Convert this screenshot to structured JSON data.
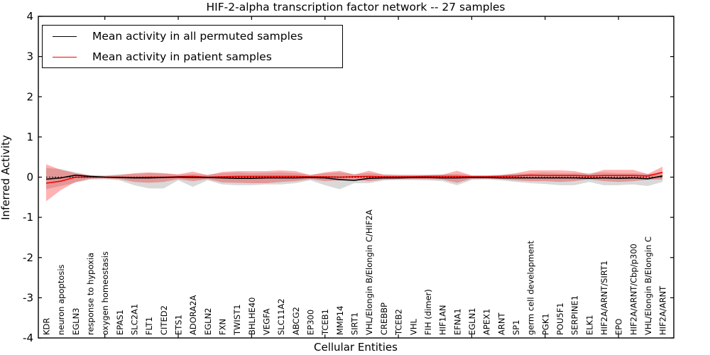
{
  "window": {
    "title": "HIF-2-alpha transcription factor network -- 27 samples"
  },
  "colors": {
    "permuted_line": "#000000",
    "patient_line": "#ff0000",
    "permuted_band": "#000000",
    "patient_band": "#ff0000",
    "axis": "#000000",
    "background": "#ffffff"
  },
  "chart_data": {
    "type": "line",
    "title": "HIF-2-alpha transcription factor network -- 27 samples",
    "xlabel": "Cellular Entities",
    "ylabel": "Inferred Activity",
    "ylim": [
      -4,
      4
    ],
    "yticks": [
      {
        "value": 4,
        "label": "4"
      },
      {
        "value": 3,
        "label": "3"
      },
      {
        "value": 2,
        "label": "2"
      },
      {
        "value": 1,
        "label": "1"
      },
      {
        "value": 0,
        "label": "0"
      },
      {
        "value": -1,
        "label": "-1"
      },
      {
        "value": -2,
        "label": "-2"
      },
      {
        "value": -3,
        "label": "-3"
      },
      {
        "value": -4,
        "label": "-4"
      }
    ],
    "x_major_tick_indices": [
      4,
      9,
      14,
      19,
      24,
      29,
      34,
      39
    ],
    "grid": false,
    "legend_position": "upper left",
    "zero_line": {
      "style": "dotted",
      "color": "#000000",
      "y": 0
    },
    "categories": [
      "KDR",
      "neuron apoptosis",
      "EGLN3",
      "response to hypoxia",
      "oxygen homeostasis",
      "EPAS1",
      "SLC2A1",
      "FLT1",
      "CITED2",
      "ETS1",
      "ADORA2A",
      "EGLN2",
      "FXN",
      "TWIST1",
      "BHLHE40",
      "VEGFA",
      "SLC11A2",
      "ABCG2",
      "EP300",
      "TCEB1",
      "MMP14",
      "SIRT1",
      "VHL/Elongin B/Elongin C/HIF2A",
      "CREBBP",
      "TCEB2",
      "VHL",
      "FIH (dimer)",
      "HIF1AN",
      "EFNA1",
      "EGLN1",
      "APEX1",
      "ARNT",
      "SP1",
      "germ cell development",
      "PGK1",
      "POU5F1",
      "SERPINE1",
      "ELK1",
      "HIF2A/ARNT/SIRT1",
      "EPO",
      "HIF2A/ARNT/Cbp/p300",
      "VHL/Elongin B/Elongin C",
      "HIF2A/ARNT"
    ],
    "series": [
      {
        "name": "Mean activity in all permuted samples",
        "color": "#000000",
        "values": [
          -0.05,
          -0.02,
          0.05,
          0.02,
          0.0,
          -0.01,
          -0.02,
          -0.02,
          -0.01,
          0.0,
          -0.01,
          -0.01,
          -0.02,
          -0.03,
          -0.03,
          -0.02,
          -0.02,
          -0.02,
          -0.01,
          -0.02,
          -0.06,
          -0.08,
          -0.03,
          -0.02,
          -0.02,
          -0.01,
          -0.01,
          -0.02,
          -0.02,
          -0.01,
          -0.01,
          -0.02,
          -0.02,
          -0.02,
          -0.02,
          -0.02,
          -0.02,
          -0.03,
          -0.02,
          -0.03,
          -0.02,
          -0.04,
          0.03
        ]
      },
      {
        "name": "Mean activity in patient samples",
        "color": "#ff0000",
        "values": [
          -0.15,
          -0.1,
          0.0,
          0.0,
          0.0,
          0.0,
          -0.01,
          0.0,
          0.0,
          0.01,
          0.02,
          0.0,
          0.01,
          0.02,
          0.02,
          0.02,
          0.02,
          0.02,
          0.01,
          0.01,
          0.0,
          0.01,
          0.02,
          0.01,
          0.01,
          0.01,
          0.02,
          0.02,
          0.02,
          0.01,
          0.01,
          0.02,
          0.03,
          0.05,
          0.04,
          0.04,
          0.04,
          0.03,
          0.04,
          0.04,
          0.04,
          0.03,
          0.12
        ]
      }
    ],
    "bands": [
      {
        "name": "permuted samples range",
        "color": "#000000",
        "opacity": 0.15,
        "upper": [
          0.23,
          0.2,
          0.12,
          0.05,
          0.04,
          0.07,
          0.08,
          0.1,
          0.09,
          0.06,
          0.08,
          0.06,
          0.1,
          0.12,
          0.1,
          0.11,
          0.12,
          0.1,
          0.06,
          0.1,
          0.12,
          0.08,
          0.1,
          0.07,
          0.06,
          0.06,
          0.06,
          0.07,
          0.08,
          0.05,
          0.05,
          0.06,
          0.08,
          0.1,
          0.12,
          0.1,
          0.1,
          0.1,
          0.12,
          0.1,
          0.1,
          0.08,
          0.1
        ],
        "lower": [
          -0.3,
          -0.22,
          -0.14,
          -0.06,
          -0.05,
          -0.08,
          -0.2,
          -0.28,
          -0.28,
          -0.08,
          -0.24,
          -0.08,
          -0.18,
          -0.2,
          -0.2,
          -0.18,
          -0.18,
          -0.15,
          -0.08,
          -0.2,
          -0.3,
          -0.15,
          -0.15,
          -0.08,
          -0.07,
          -0.07,
          -0.08,
          -0.1,
          -0.2,
          -0.07,
          -0.06,
          -0.08,
          -0.12,
          -0.15,
          -0.17,
          -0.2,
          -0.2,
          -0.12,
          -0.2,
          -0.2,
          -0.18,
          -0.22,
          -0.12
        ]
      },
      {
        "name": "patient samples range",
        "color": "#ff0000",
        "opacity": 0.3,
        "upper": [
          0.32,
          0.18,
          0.1,
          0.04,
          0.03,
          0.05,
          0.1,
          0.12,
          0.1,
          0.07,
          0.14,
          0.05,
          0.13,
          0.15,
          0.15,
          0.15,
          0.17,
          0.15,
          0.05,
          0.12,
          0.16,
          0.06,
          0.16,
          0.06,
          0.05,
          0.05,
          0.05,
          0.06,
          0.16,
          0.04,
          0.04,
          0.05,
          0.1,
          0.17,
          0.17,
          0.17,
          0.15,
          0.07,
          0.18,
          0.18,
          0.18,
          0.08,
          0.26
        ],
        "lower": [
          -0.6,
          -0.32,
          -0.12,
          -0.04,
          -0.03,
          -0.05,
          -0.12,
          -0.14,
          -0.12,
          -0.05,
          -0.1,
          -0.05,
          -0.13,
          -0.14,
          -0.15,
          -0.15,
          -0.12,
          -0.1,
          -0.05,
          -0.1,
          -0.08,
          -0.06,
          -0.1,
          -0.06,
          -0.05,
          -0.05,
          -0.05,
          -0.06,
          -0.14,
          -0.04,
          -0.04,
          -0.05,
          -0.08,
          -0.1,
          -0.1,
          -0.12,
          -0.1,
          -0.05,
          -0.1,
          -0.12,
          -0.1,
          -0.06,
          -0.06
        ]
      }
    ]
  }
}
